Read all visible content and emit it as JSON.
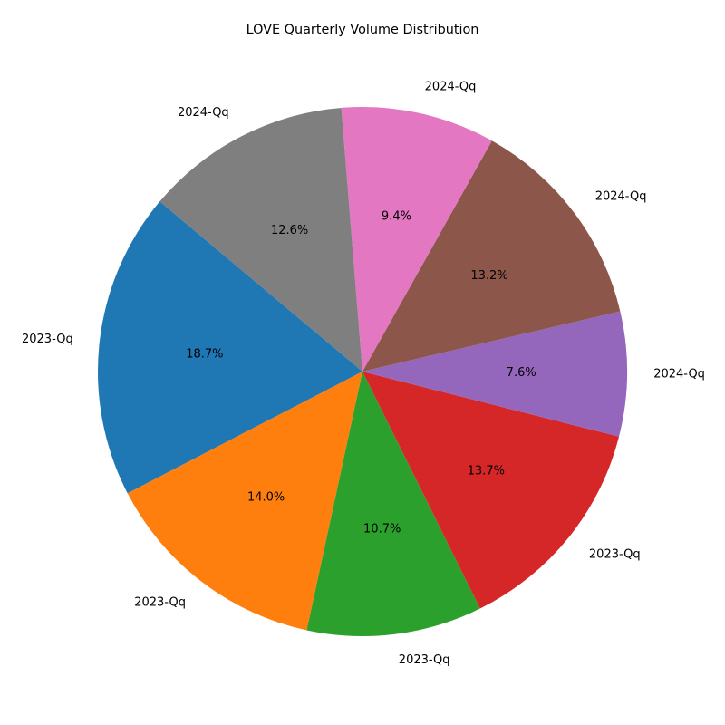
{
  "chart_data": {
    "type": "pie",
    "title": "LOVE Quarterly Volume Distribution",
    "start_angle_deg": 140,
    "direction": "counterclockwise",
    "categories": [
      "2023-Qq",
      "2023-Qq",
      "2023-Qq",
      "2023-Qq",
      "2024-Qq",
      "2024-Qq",
      "2024-Qq",
      "2024-Qq"
    ],
    "values": [
      18.7,
      14.0,
      10.7,
      13.7,
      7.6,
      13.2,
      9.4,
      12.6
    ],
    "percent_labels": [
      "18.7%",
      "14.0%",
      "10.7%",
      "13.7%",
      "7.6%",
      "13.2%",
      "9.4%",
      "12.6%"
    ],
    "colors": [
      "#1f77b4",
      "#ff7f0e",
      "#2ca02c",
      "#d62728",
      "#9467bd",
      "#8c564b",
      "#e377c2",
      "#7f7f7f"
    ]
  }
}
